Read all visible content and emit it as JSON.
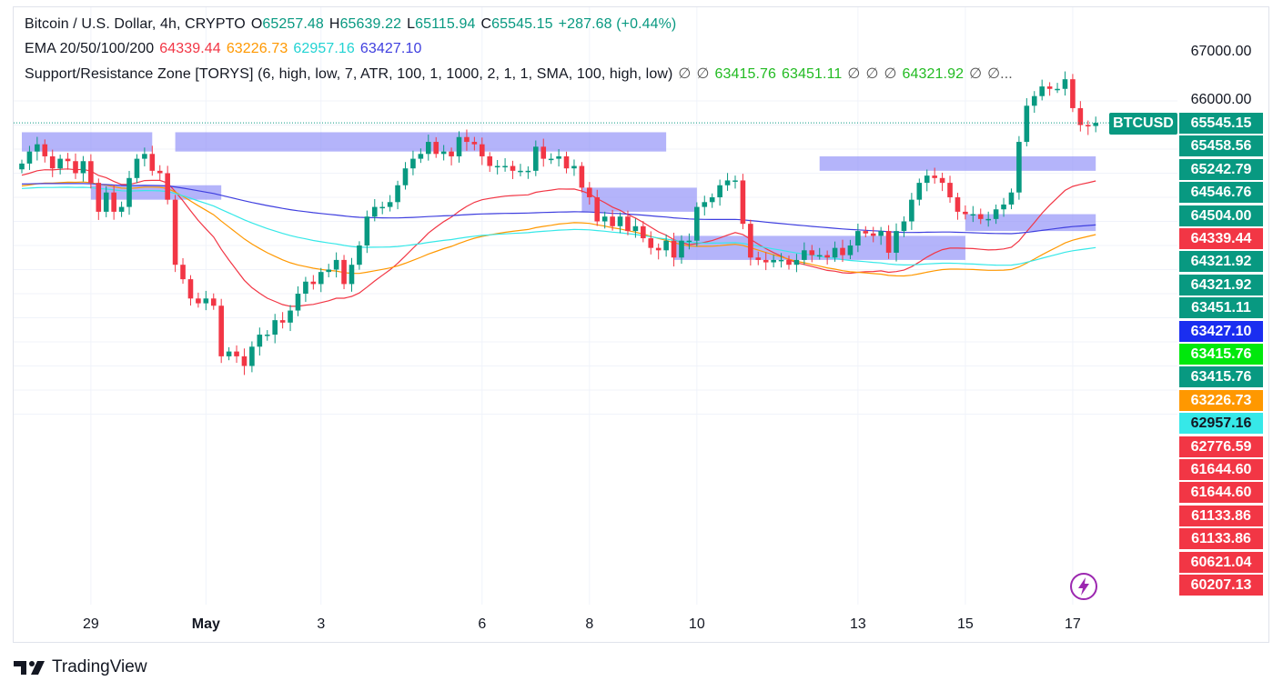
{
  "legend": {
    "line1": {
      "symbol": "Bitcoin / U.S. Dollar, 4h, CRYPTO",
      "o_label": "O",
      "o_value": "65257.48",
      "h_label": "H",
      "h_value": "65639.22",
      "l_label": "L",
      "l_value": "65115.94",
      "c_label": "C",
      "c_value": "65545.15",
      "change": "+287.68 (+0.44%)"
    },
    "line2": {
      "name": "EMA 20/50/100/200",
      "v20": "64339.44",
      "v50": "63226.73",
      "v100": "62957.16",
      "v200": "63427.10"
    },
    "line3": {
      "name": "Support/Resistance Zone [TORYS] (6, high, low, 7, ATR, 100, 1, 1000, 2, 1, 1, SMA, 100, high, low)",
      "n1": "∅",
      "n2": "∅",
      "z1": "63415.76",
      "z2": "63451.11",
      "n3": "∅",
      "n4": "∅",
      "n5": "∅",
      "z3": "64321.92",
      "n6": "∅",
      "ellipsis": "∅..."
    }
  },
  "colors": {
    "up": "#089981",
    "down": "#f23645",
    "ema20": "#f23645",
    "ema50": "#ff9800",
    "ema100": "#36e8e8",
    "ema200": "#3f3fdf",
    "zone": "#8c8cf7",
    "zone_dark": "#3b3bf0"
  },
  "symbol_tag": "BTCUSD",
  "price_axis_ticks": [
    "67000.00",
    "66000.00"
  ],
  "price_labels": [
    {
      "text": "65545.15",
      "bg": "#089981",
      "price": 65545.15
    },
    {
      "text": "65458.56",
      "bg": "#089981",
      "price": 65458.56
    },
    {
      "text": "65242.79",
      "bg": "#089981",
      "price": 65242.79
    },
    {
      "text": "64546.76",
      "bg": "#089981",
      "price": 64546.76
    },
    {
      "text": "64504.00",
      "bg": "#089981",
      "price": 64504.0
    },
    {
      "text": "64339.44",
      "bg": "#f23645",
      "price": 64339.44
    },
    {
      "text": "64321.92",
      "bg": "#089981",
      "price": 64321.92
    },
    {
      "text": "64321.92",
      "bg": "#089981",
      "price": 64321.92
    },
    {
      "text": "63451.11",
      "bg": "#089981",
      "price": 63451.11
    },
    {
      "text": "63427.10",
      "bg": "#1a2ef0",
      "price": 63427.1
    },
    {
      "text": "63415.76",
      "bg": "#00e80c",
      "price": 63415.76
    },
    {
      "text": "63415.76",
      "bg": "#089981",
      "price": 63415.76
    },
    {
      "text": "63226.73",
      "bg": "#ff9800",
      "price": 63226.73
    },
    {
      "text": "62957.16",
      "bg": "#36e8e8",
      "fg": "#131722",
      "price": 62957.16
    },
    {
      "text": "62776.59",
      "bg": "#f23645",
      "price": 62776.59
    },
    {
      "text": "61644.60",
      "bg": "#f23645",
      "price": 61644.6
    },
    {
      "text": "61644.60",
      "bg": "#f23645",
      "price": 61644.6
    },
    {
      "text": "61133.86",
      "bg": "#f23645",
      "price": 61133.86
    },
    {
      "text": "61133.86",
      "bg": "#f23645",
      "price": 61133.86
    },
    {
      "text": "60621.04",
      "bg": "#f23645",
      "price": 60621.04
    },
    {
      "text": "60207.13",
      "bg": "#f23645",
      "price": 60207.13
    }
  ],
  "time_axis": [
    {
      "label": "29",
      "bar": 9
    },
    {
      "label": "May",
      "bar": 24
    },
    {
      "label": "3",
      "bar": 39
    },
    {
      "label": "6",
      "bar": 60
    },
    {
      "label": "8",
      "bar": 74
    },
    {
      "label": "10",
      "bar": 88
    },
    {
      "label": "13",
      "bar": 109
    },
    {
      "label": "15",
      "bar": 123
    },
    {
      "label": "17",
      "bar": 137
    }
  ],
  "brand": "TradingView",
  "chart_data": {
    "type": "candlestick",
    "title": "Bitcoin / U.S. Dollar, 4h, CRYPTO",
    "ylim": [
      59650,
      67500
    ],
    "x_labels": [
      "29",
      "May",
      "3",
      "6",
      "8",
      "10",
      "13",
      "15",
      "17"
    ],
    "close_markers": [
      64700,
      64950,
      65100,
      64850,
      64600,
      64800,
      64750,
      64500,
      64750,
      64300,
      63700,
      64100,
      63700,
      63800,
      64400,
      64800,
      64900,
      64550,
      64500,
      63950,
      62600,
      62300,
      61900,
      61800,
      61900,
      61750,
      60700,
      60800,
      60700,
      60500,
      60900,
      61150,
      61150,
      61450,
      61400,
      61650,
      62000,
      62250,
      62200,
      62450,
      62500,
      62700,
      62200,
      62600,
      63000,
      63600,
      63800,
      63800,
      63900,
      64250,
      64600,
      64800,
      64900,
      65150,
      64900,
      64950,
      64850,
      65250,
      65150,
      65100,
      64850,
      64650,
      64650,
      64650,
      64550,
      64550,
      64550,
      65050,
      64800,
      64800,
      64850,
      64600,
      64650,
      64200,
      64000,
      63500,
      63600,
      63400,
      63600,
      63300,
      63400,
      63150,
      62950,
      62900,
      63100,
      62750,
      63100,
      63100,
      63800,
      63900,
      64000,
      64250,
      64350,
      64350,
      63450,
      62750,
      62700,
      62650,
      62700,
      62700,
      62600,
      62700,
      62900,
      62800,
      62800,
      62750,
      62950,
      62800,
      63000,
      63300,
      63250,
      63200,
      63300,
      62850,
      63300,
      63500,
      63950,
      64300,
      64450,
      64400,
      64300,
      64000,
      63700,
      63650,
      63650,
      63550,
      63550,
      63750,
      63850,
      64100,
      65150,
      65900,
      66100,
      66300,
      66250,
      66250,
      66450,
      65850,
      65500,
      65480,
      65545.15
    ],
    "ema_20": {
      "name": "EMA 20",
      "last": 64339.44
    },
    "ema_50": {
      "name": "EMA 50",
      "last": 63226.73
    },
    "ema_100": {
      "name": "EMA 100",
      "last": 62957.16
    },
    "ema_200": {
      "name": "EMA 200",
      "last": 63427.1
    },
    "zones": [
      {
        "from_bar": 0,
        "to_bar": 17,
        "top": 65350,
        "bottom": 64950
      },
      {
        "from_bar": 9,
        "to_bar": 26,
        "top": 64250,
        "bottom": 63950
      },
      {
        "from_bar": 20,
        "to_bar": 54,
        "top": 65350,
        "bottom": 64950
      },
      {
        "from_bar": 54,
        "to_bar": 84,
        "top": 65350,
        "bottom": 64950
      },
      {
        "from_bar": 73,
        "to_bar": 88,
        "top": 64200,
        "bottom": 63700
      },
      {
        "from_bar": 85,
        "to_bar": 123,
        "top": 63200,
        "bottom": 62700
      },
      {
        "from_bar": 104,
        "to_bar": 140,
        "top": 64850,
        "bottom": 64550
      },
      {
        "from_bar": 123,
        "to_bar": 140,
        "top": 63650,
        "bottom": 63300
      }
    ]
  }
}
